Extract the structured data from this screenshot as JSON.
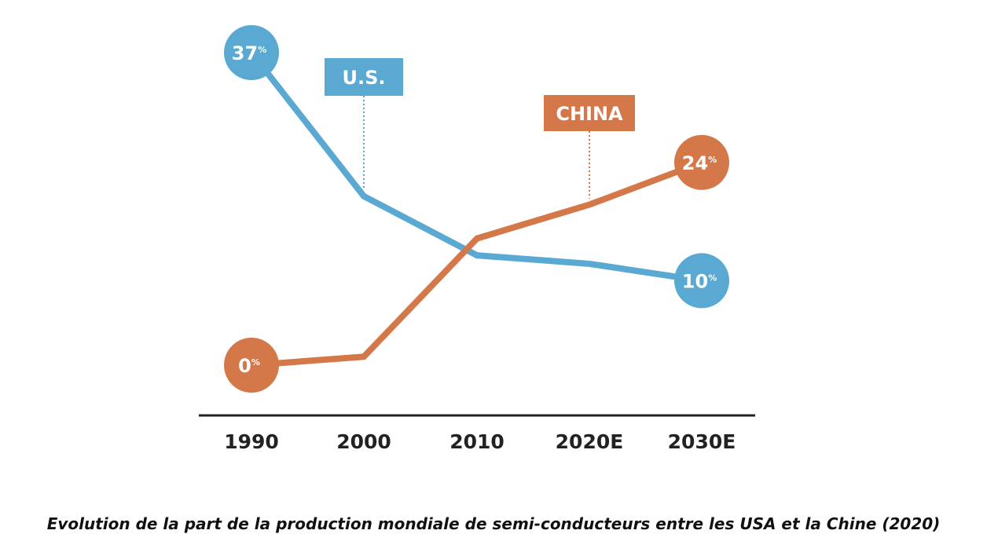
{
  "chart_data": {
    "type": "line",
    "categories": [
      "1990",
      "2000",
      "2010",
      "2020E",
      "2030E"
    ],
    "series": [
      {
        "name": "U.S.",
        "values": [
          37,
          20,
          13,
          12,
          10
        ],
        "color": "#5aa9d2",
        "start_label": "37",
        "end_label": "10"
      },
      {
        "name": "CHINA",
        "values": [
          0,
          1,
          15,
          19,
          24
        ],
        "color": "#d4784a",
        "start_label": "0",
        "end_label": "24"
      }
    ],
    "percent_symbol": "%",
    "ylim": [
      0,
      37
    ],
    "grid": false,
    "axis_color": "#222222",
    "title": "",
    "xlabel": "",
    "ylabel": ""
  },
  "caption": "Evolution de la part de la production mondiale de semi-conducteurs entre les USA et la Chine (2020)"
}
